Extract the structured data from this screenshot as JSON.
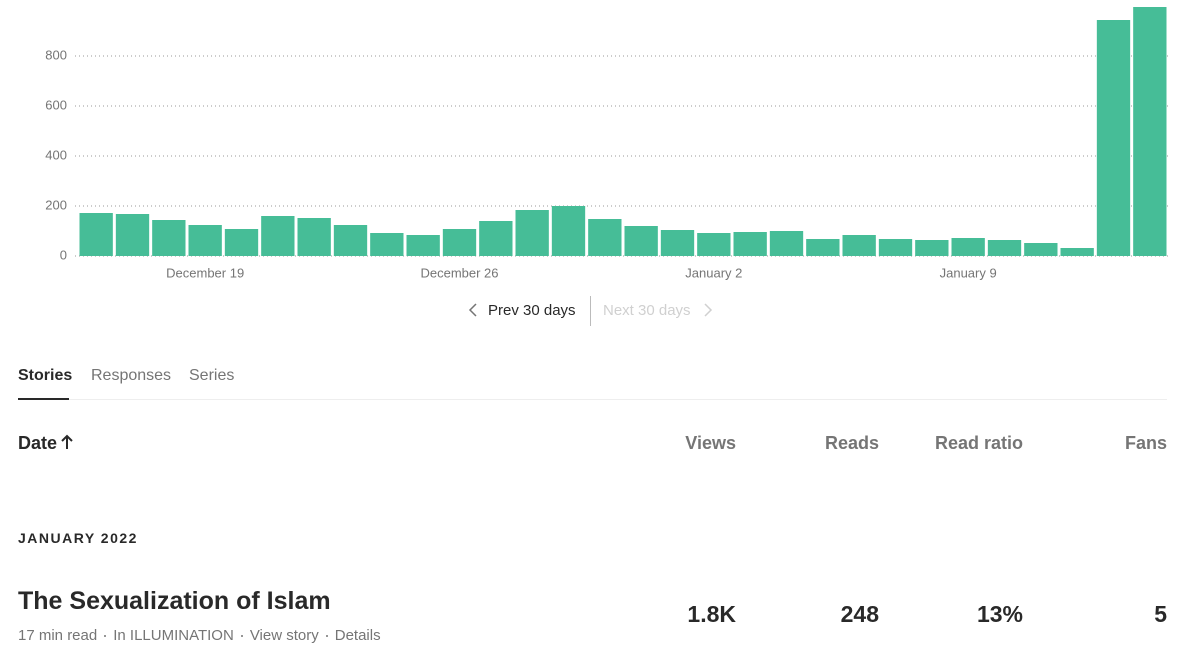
{
  "chart_data": {
    "type": "bar",
    "color": "#46bd97",
    "categories": [
      null,
      null,
      null,
      "December 19",
      null,
      null,
      null,
      null,
      null,
      null,
      "December 26",
      null,
      null,
      null,
      null,
      null,
      null,
      "January 2",
      null,
      null,
      null,
      null,
      null,
      null,
      "January 9",
      null,
      null,
      null,
      null,
      null
    ],
    "values": [
      172,
      168,
      144,
      124,
      108,
      160,
      152,
      124,
      92,
      84,
      108,
      140,
      184,
      200,
      148,
      120,
      104,
      92,
      96,
      100,
      68,
      84,
      68,
      64,
      72,
      64,
      52,
      32,
      944,
      996
    ],
    "ylim": [
      0,
      1000
    ],
    "yticks": [
      0,
      200,
      400,
      600,
      800
    ],
    "grid": true
  },
  "nav": {
    "prev": "Prev 30 days",
    "next": "Next 30 days"
  },
  "tabs": [
    "Stories",
    "Responses",
    "Series"
  ],
  "table": {
    "headers": {
      "date": "Date",
      "views": "Views",
      "reads": "Reads",
      "ratio": "Read ratio",
      "fans": "Fans"
    },
    "section": "JANUARY 2022",
    "rows": [
      {
        "title": "The Sexualization of Islam",
        "meta": [
          "17 min read",
          "In ILLUMINATION",
          "View story",
          "Details"
        ],
        "views": "1.8K",
        "reads": "248",
        "ratio": "13%",
        "fans": "5"
      }
    ]
  }
}
